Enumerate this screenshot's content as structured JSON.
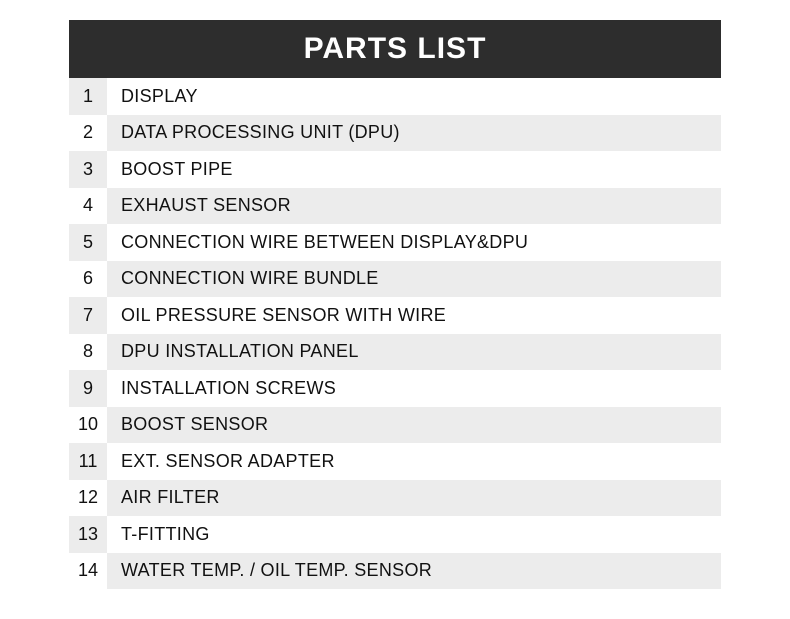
{
  "table": {
    "title": "PARTS LIST",
    "header_bg": "#2d2d2d",
    "header_color": "#ffffff",
    "header_fontsize": 30,
    "row_height": 36.5,
    "num_col_width": 38,
    "row_colors": {
      "even": "#ffffff",
      "odd": "#ececec"
    },
    "text_color": "#111111",
    "cell_fontsize": 18,
    "rows": [
      {
        "num": "1",
        "name": "DISPLAY"
      },
      {
        "num": "2",
        "name": "DATA PROCESSING UNIT (DPU)"
      },
      {
        "num": "3",
        "name": "BOOST PIPE"
      },
      {
        "num": "4",
        "name": "EXHAUST SENSOR"
      },
      {
        "num": "5",
        "name": "CONNECTION WIRE BETWEEN DISPLAY&DPU"
      },
      {
        "num": "6",
        "name": "CONNECTION WIRE BUNDLE"
      },
      {
        "num": "7",
        "name": "OIL PRESSURE SENSOR WITH WIRE"
      },
      {
        "num": "8",
        "name": "DPU INSTALLATION PANEL"
      },
      {
        "num": "9",
        "name": "INSTALLATION SCREWS"
      },
      {
        "num": "10",
        "name": "BOOST SENSOR"
      },
      {
        "num": "11",
        "name": "EXT. SENSOR ADAPTER"
      },
      {
        "num": "12",
        "name": "AIR FILTER"
      },
      {
        "num": "13",
        "name": "T-FITTING"
      },
      {
        "num": "14",
        "name": "WATER TEMP. / OIL TEMP. SENSOR"
      }
    ]
  }
}
